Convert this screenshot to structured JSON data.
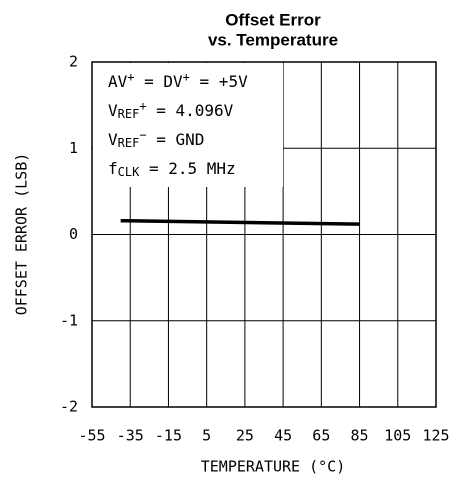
{
  "chart_data": {
    "type": "line",
    "title": [
      "Offset Error",
      "vs. Temperature"
    ],
    "x_label": "TEMPERATURE (°C)",
    "y_label": "OFFSET ERROR (LSB)",
    "x": [
      -40,
      85
    ],
    "series": [
      {
        "color": "#000000",
        "values": [
          0.16,
          0.12
        ]
      }
    ],
    "xlim": [
      -55,
      125
    ],
    "xticks": [
      -55,
      -35,
      -15,
      5,
      25,
      45,
      65,
      85,
      105,
      125
    ],
    "ylim": [
      -2,
      2
    ],
    "yticks": [
      -2,
      -1,
      0,
      1,
      2
    ],
    "grid": true,
    "annotations": [
      [
        {
          "text": "AV"
        },
        {
          "sup": "+"
        },
        {
          "text": " = DV"
        },
        {
          "sup": "+"
        },
        {
          "text": " = +5V"
        }
      ],
      [
        {
          "text": "V"
        },
        {
          "sub": "REF"
        },
        {
          "sup": "+"
        },
        {
          "text": " = 4.096V"
        }
      ],
      [
        {
          "text": "V"
        },
        {
          "sub": "REF"
        },
        {
          "sup": "−"
        },
        {
          "text": " = GND"
        }
      ],
      [
        {
          "text": "f"
        },
        {
          "sub": "CLK"
        },
        {
          "text": " = 2.5 MHz"
        }
      ]
    ]
  }
}
